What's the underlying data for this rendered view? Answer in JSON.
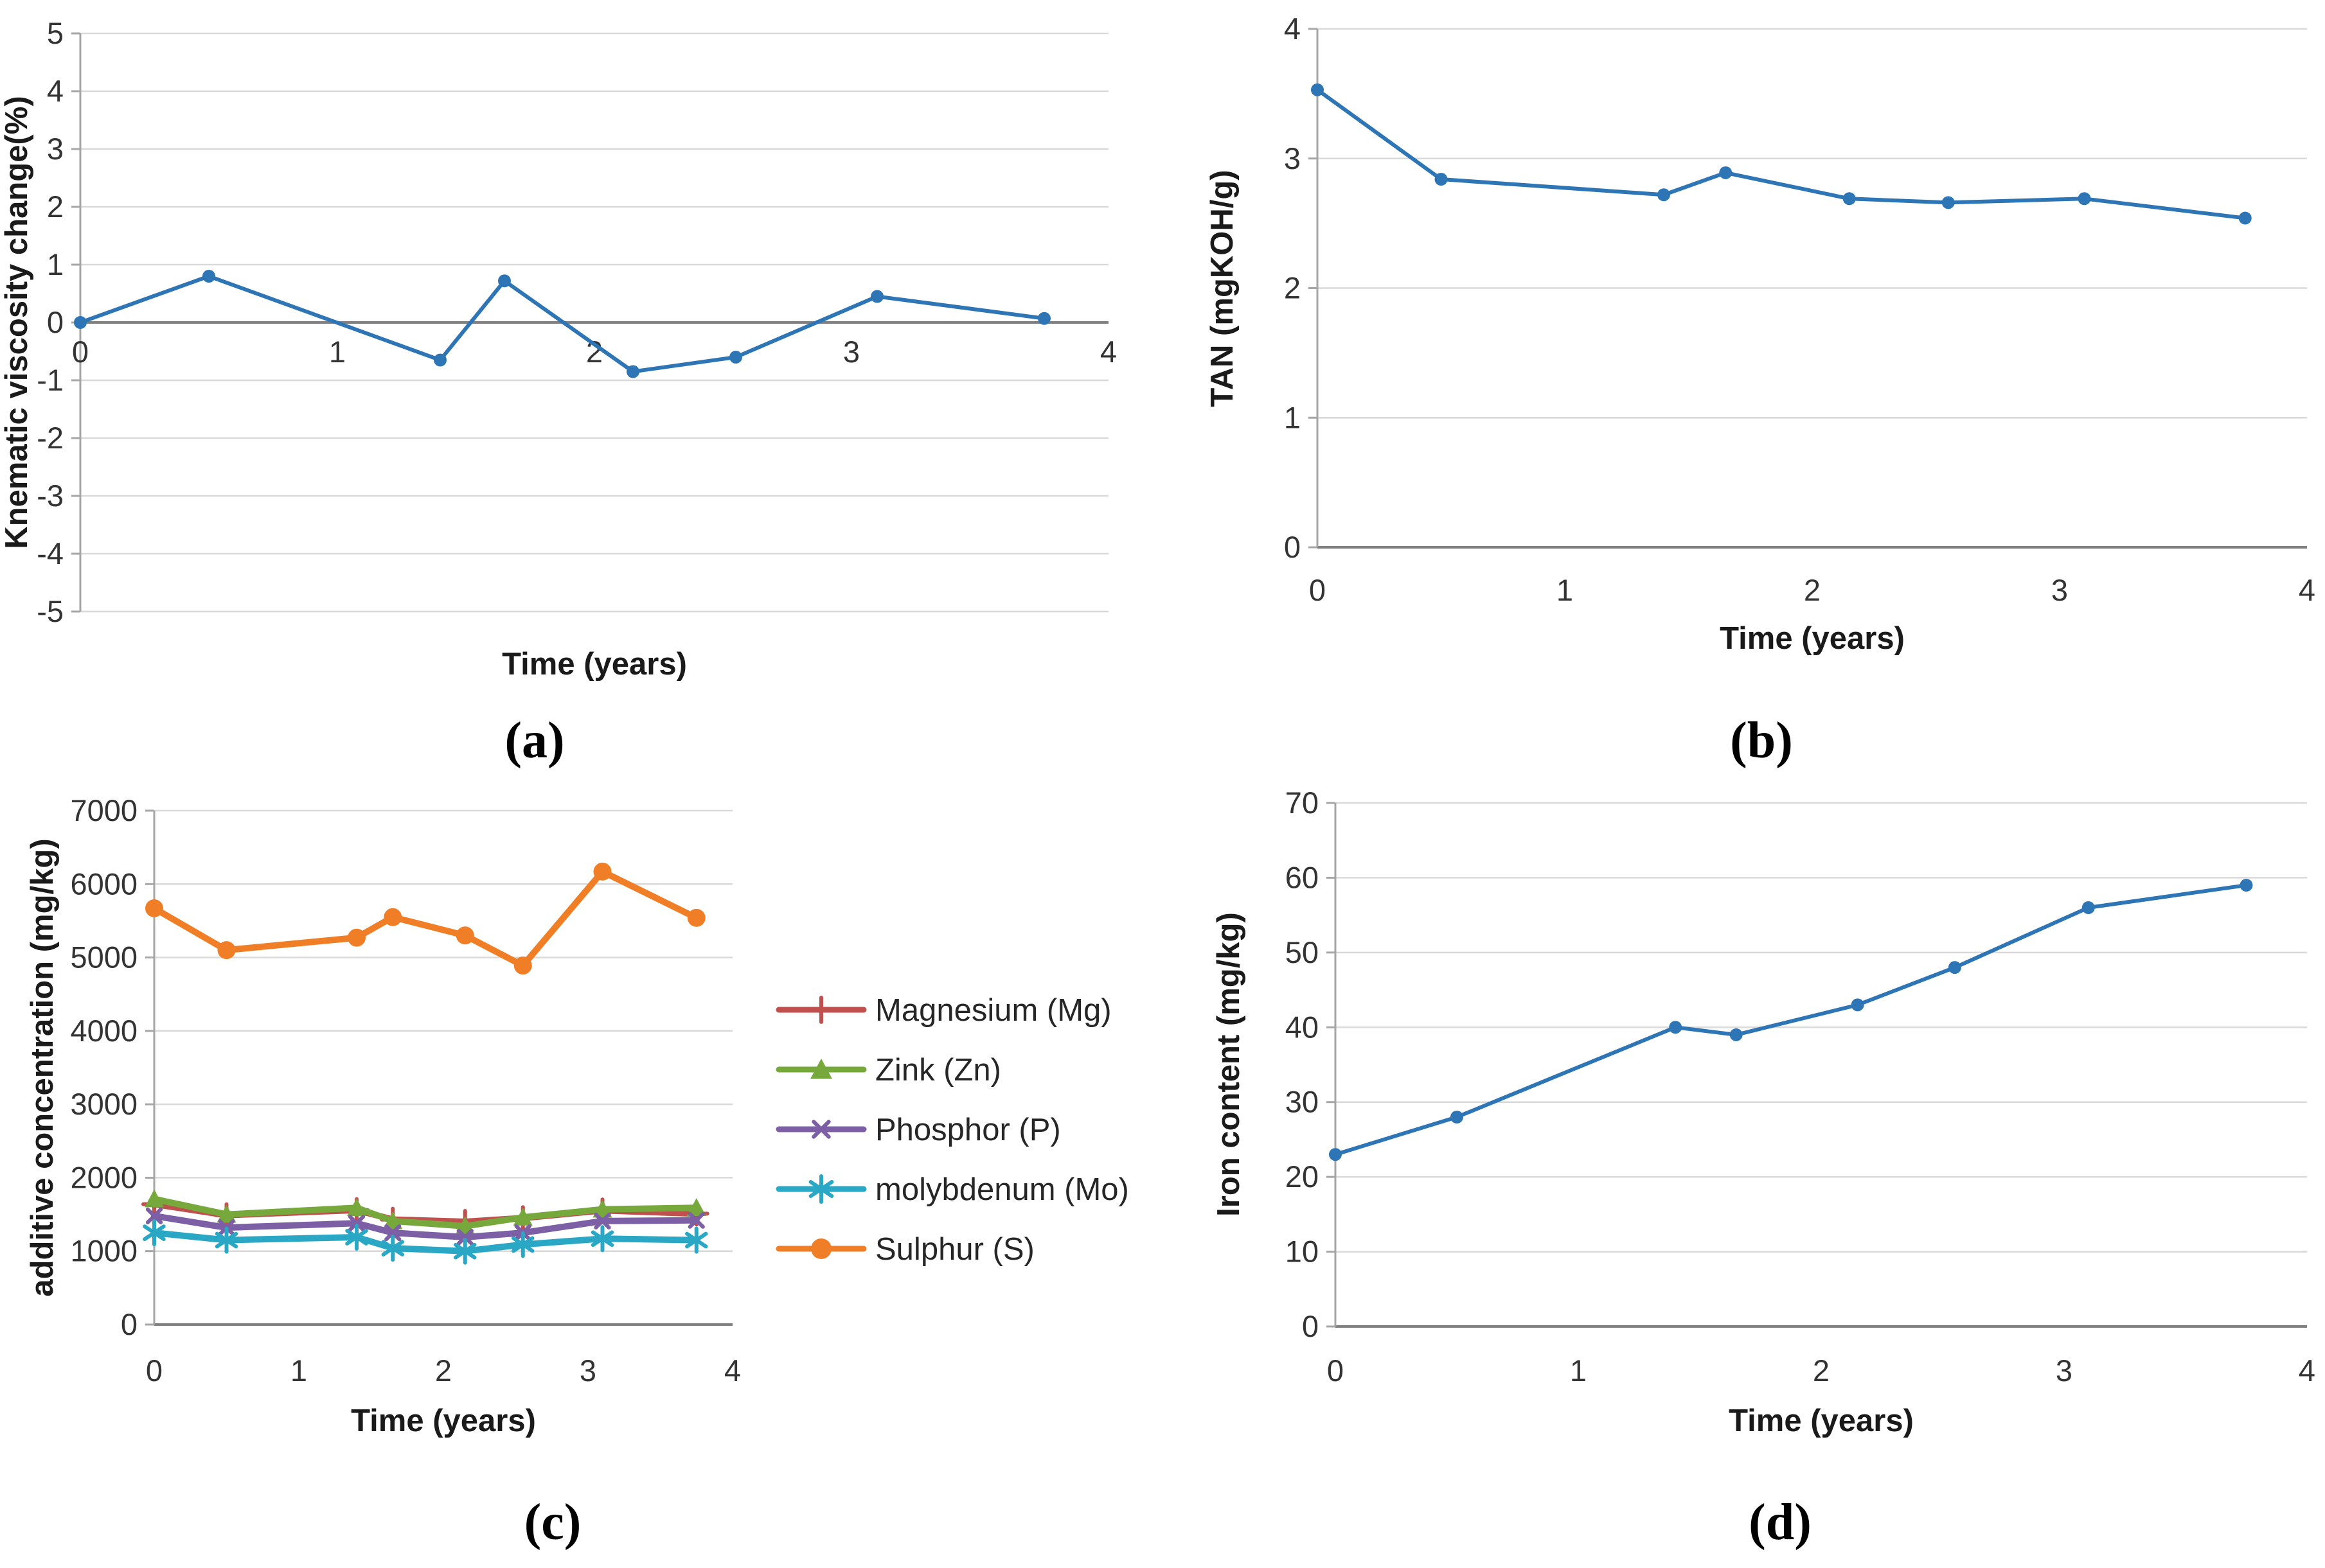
{
  "palette": {
    "grid": "#D9D9D9",
    "axis": "#A6A6A6",
    "axis_strong": "#808080",
    "tick_text": "#333333",
    "label_text": "#1A1A1A",
    "blue": "#2E75B6",
    "red": "#C0504D",
    "green": "#76A83C",
    "purple": "#7C5FA5",
    "teal": "#2AA7C4",
    "orange": "#F07E27"
  },
  "captions": {
    "a": "(a)",
    "b": "(b)",
    "c": "(c)",
    "d": "(d)"
  },
  "chart_data": [
    {
      "id": "a",
      "type": "line",
      "title": "",
      "xlabel": "Time (years)",
      "ylabel": "Knematic viscosity change(%)",
      "xlim": [
        0,
        4
      ],
      "ylim": [
        -5,
        5
      ],
      "xticks": [
        0,
        1,
        2,
        3,
        4
      ],
      "yticks": [
        5,
        4,
        3,
        2,
        1,
        0,
        -1,
        -2,
        -3,
        -4,
        -5
      ],
      "grid": true,
      "legend_position": "none",
      "x": [
        0,
        0.5,
        1.4,
        1.65,
        2.15,
        2.55,
        3.1,
        3.75
      ],
      "series": [
        {
          "name": "Kinematic viscosity change",
          "color": "#2E75B6",
          "marker": "circle",
          "values": [
            0,
            0.8,
            -0.65,
            0.72,
            -0.85,
            -0.6,
            0.45,
            0.07
          ]
        }
      ]
    },
    {
      "id": "b",
      "type": "line",
      "title": "",
      "xlabel": "Time (years)",
      "ylabel": "TAN (mgKOH/g)",
      "xlim": [
        0,
        4
      ],
      "ylim": [
        0,
        4
      ],
      "xticks": [
        0,
        1,
        2,
        3,
        4
      ],
      "yticks": [
        4,
        3,
        2,
        1,
        0
      ],
      "grid": true,
      "legend_position": "none",
      "x": [
        0,
        0.5,
        1.4,
        1.65,
        2.15,
        2.55,
        3.1,
        3.75
      ],
      "series": [
        {
          "name": "TAN",
          "color": "#2E75B6",
          "marker": "circle",
          "values": [
            3.53,
            2.84,
            2.72,
            2.89,
            2.69,
            2.66,
            2.69,
            2.54
          ]
        }
      ]
    },
    {
      "id": "c",
      "type": "line",
      "title": "",
      "xlabel": "Time (years)",
      "ylabel": "additive concentration (mg/kg)",
      "xlim": [
        0,
        4
      ],
      "ylim": [
        0,
        7000
      ],
      "xticks": [
        0,
        1,
        2,
        3,
        4
      ],
      "yticks": [
        7000,
        6000,
        5000,
        4000,
        3000,
        2000,
        1000,
        0
      ],
      "grid": true,
      "legend_position": "right",
      "x": [
        0,
        0.5,
        1.4,
        1.65,
        2.15,
        2.55,
        3.1,
        3.75
      ],
      "series": [
        {
          "name": "Magnesium (Mg)",
          "color": "#C0504D",
          "marker": "plus",
          "values": [
            1640,
            1490,
            1560,
            1430,
            1400,
            1450,
            1555,
            1510
          ]
        },
        {
          "name": "Zink (Zn)",
          "color": "#76A83C",
          "marker": "triangle",
          "values": [
            1710,
            1500,
            1590,
            1410,
            1340,
            1460,
            1570,
            1590
          ]
        },
        {
          "name": "Phosphor (P)",
          "color": "#7C5FA5",
          "marker": "x",
          "values": [
            1480,
            1320,
            1380,
            1250,
            1190,
            1250,
            1410,
            1420
          ]
        },
        {
          "name": "molybdenum (Mo)",
          "color": "#2AA7C4",
          "marker": "asterisk",
          "values": [
            1250,
            1150,
            1190,
            1040,
            1000,
            1090,
            1170,
            1150
          ]
        },
        {
          "name": "Sulphur (S)",
          "color": "#F07E27",
          "marker": "circle",
          "values": [
            5670,
            5100,
            5270,
            5550,
            5300,
            4890,
            6170,
            5540
          ]
        }
      ]
    },
    {
      "id": "d",
      "type": "line",
      "title": "",
      "xlabel": "Time (years)",
      "ylabel": "Iron content (mg/kg)",
      "xlim": [
        0,
        4
      ],
      "ylim": [
        0,
        70
      ],
      "xticks": [
        0,
        1,
        2,
        3,
        4
      ],
      "yticks": [
        70,
        60,
        50,
        40,
        30,
        20,
        10,
        0
      ],
      "grid": true,
      "legend_position": "none",
      "x": [
        0,
        0.5,
        1.4,
        1.65,
        2.15,
        2.55,
        3.1,
        3.75
      ],
      "series": [
        {
          "name": "Iron content",
          "color": "#2E75B6",
          "marker": "circle",
          "values": [
            23,
            28,
            40,
            39,
            43,
            48,
            56,
            59
          ]
        }
      ]
    }
  ]
}
